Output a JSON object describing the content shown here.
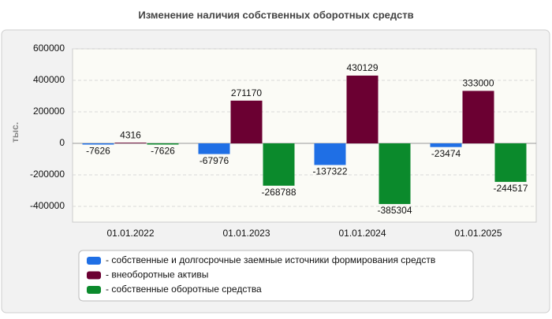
{
  "chart_data": {
    "type": "bar",
    "title": "Изменение наличия собственных оборотных средств",
    "y_label": "тыс.",
    "categories": [
      "01.01.2022",
      "01.01.2023",
      "01.01.2024",
      "01.01.2025"
    ],
    "series": [
      {
        "name": "- собственные и долгосрочные заемные источники формирования средств",
        "color": "#1f6fe5",
        "values": [
          -7626,
          -67976,
          -137322,
          -23474
        ]
      },
      {
        "name": "- внеоборотные активы",
        "color": "#6b0032",
        "values": [
          4316,
          271170,
          430129,
          333000
        ]
      },
      {
        "name": "- собственные оборотные средства",
        "color": "#0b8a2c",
        "values": [
          -7626,
          -268788,
          -385304,
          -244517
        ]
      }
    ],
    "ylim": [
      -500000,
      600000
    ],
    "yticks": [
      -400000,
      -200000,
      0,
      200000,
      400000,
      600000
    ],
    "grid": true
  }
}
